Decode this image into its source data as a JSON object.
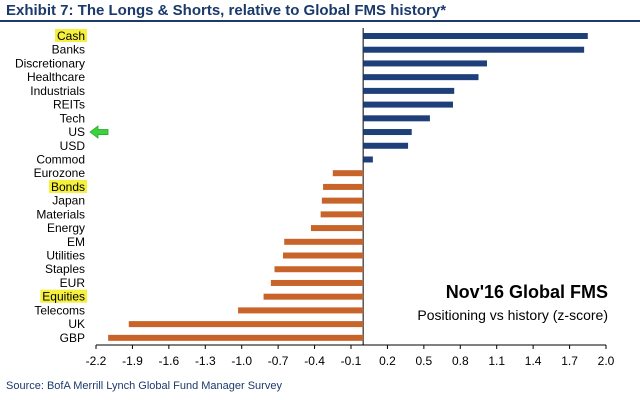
{
  "page": {
    "title": "Exhibit 7: The Longs & Shorts, relative to Global FMS history*",
    "source": "Source: BofA Merrill Lynch Global Fund Manager Survey"
  },
  "colors": {
    "positive": "#1f3f7a",
    "negative": "#c8642a",
    "highlight": "#f5ef3d",
    "arrow": "#39d43b",
    "title": "#1b3a6b"
  },
  "chart_data": {
    "type": "bar",
    "orientation": "horizontal",
    "annotation_title": "Nov'16 Global FMS",
    "annotation_subtitle": "Positioning vs history (z-score)",
    "categories": [
      "Cash",
      "Banks",
      "Discretionary",
      "Healthcare",
      "Industrials",
      "REITs",
      "Tech",
      "US",
      "USD",
      "Commod",
      "Eurozone",
      "Bonds",
      "Japan",
      "Materials",
      "Energy",
      "EM",
      "Utilities",
      "Staples",
      "EUR",
      "Equities",
      "Telecoms",
      "UK",
      "GBP"
    ],
    "values": [
      1.85,
      1.82,
      1.02,
      0.95,
      0.75,
      0.74,
      0.55,
      0.4,
      0.37,
      0.08,
      -0.25,
      -0.33,
      -0.34,
      -0.35,
      -0.43,
      -0.65,
      -0.66,
      -0.73,
      -0.76,
      -0.82,
      -1.03,
      -1.93,
      -2.1
    ],
    "highlighted": [
      "Cash",
      "Bonds",
      "Equities"
    ],
    "arrow_category": "US",
    "xlim": [
      -2.2,
      2.0
    ],
    "xticks": [
      "-2.2",
      "-1.9",
      "-1.6",
      "-1.3",
      "-1.0",
      "-0.7",
      "-0.4",
      "-0.1",
      "0.2",
      "0.5",
      "0.8",
      "1.1",
      "1.4",
      "1.7",
      "2.0"
    ],
    "xlabel": "",
    "ylabel": ""
  }
}
